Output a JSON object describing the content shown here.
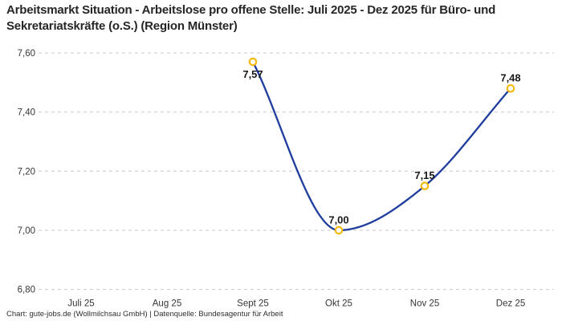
{
  "title": "Arbeitsmarkt Situation - Arbeitslose pro offene Stelle: Juli 2025 - Dez 2025 für Büro- und Sekretariatskräfte (o.S.) (Region Münster)",
  "credit": "Chart: gute-jobs.de (Wollmilchsau GmbH) | Datenquelle: Bundesagentur für Arbeit",
  "colors": {
    "background": "#ffffff",
    "title_text": "#262626",
    "line": "#1e3d9e",
    "marker_ring": "#f6ba12",
    "marker_fill": "#ffffff",
    "grid": "#c9c9c9",
    "axis_text": "#363636",
    "data_label": "#191919",
    "credit_text": "#2e2e2e"
  },
  "chart_data": {
    "type": "line",
    "title": "Arbeitsmarkt Situation - Arbeitslose pro offene Stelle: Juli 2025 - Dez 2025 für Büro- und Sekretariatskräfte (o.S.) (Region Münster)",
    "categories": [
      "Juli 25",
      "Aug 25",
      "Sept 25",
      "Okt 25",
      "Nov 25",
      "Dez 25"
    ],
    "series": [
      {
        "name": "Arbeitslose pro offene Stelle",
        "values": [
          null,
          null,
          7.57,
          7.0,
          7.15,
          7.48
        ],
        "data_labels": [
          "",
          "",
          "7,57",
          "7,00",
          "7,15",
          "7,48"
        ],
        "label_placement": [
          "",
          "",
          "below",
          "above",
          "above",
          "above"
        ]
      }
    ],
    "xlabel": "",
    "ylabel": "",
    "ylim": [
      6.8,
      7.6
    ],
    "y_ticks": [
      {
        "value": 6.8,
        "label": "6,80"
      },
      {
        "value": 7.0,
        "label": "7,00"
      },
      {
        "value": 7.2,
        "label": "7,20"
      },
      {
        "value": 7.4,
        "label": "7,40"
      },
      {
        "value": 7.6,
        "label": "7,60"
      }
    ],
    "grid": "horizontal-dashed",
    "legend": "none",
    "line_style": "smooth-monotone"
  }
}
